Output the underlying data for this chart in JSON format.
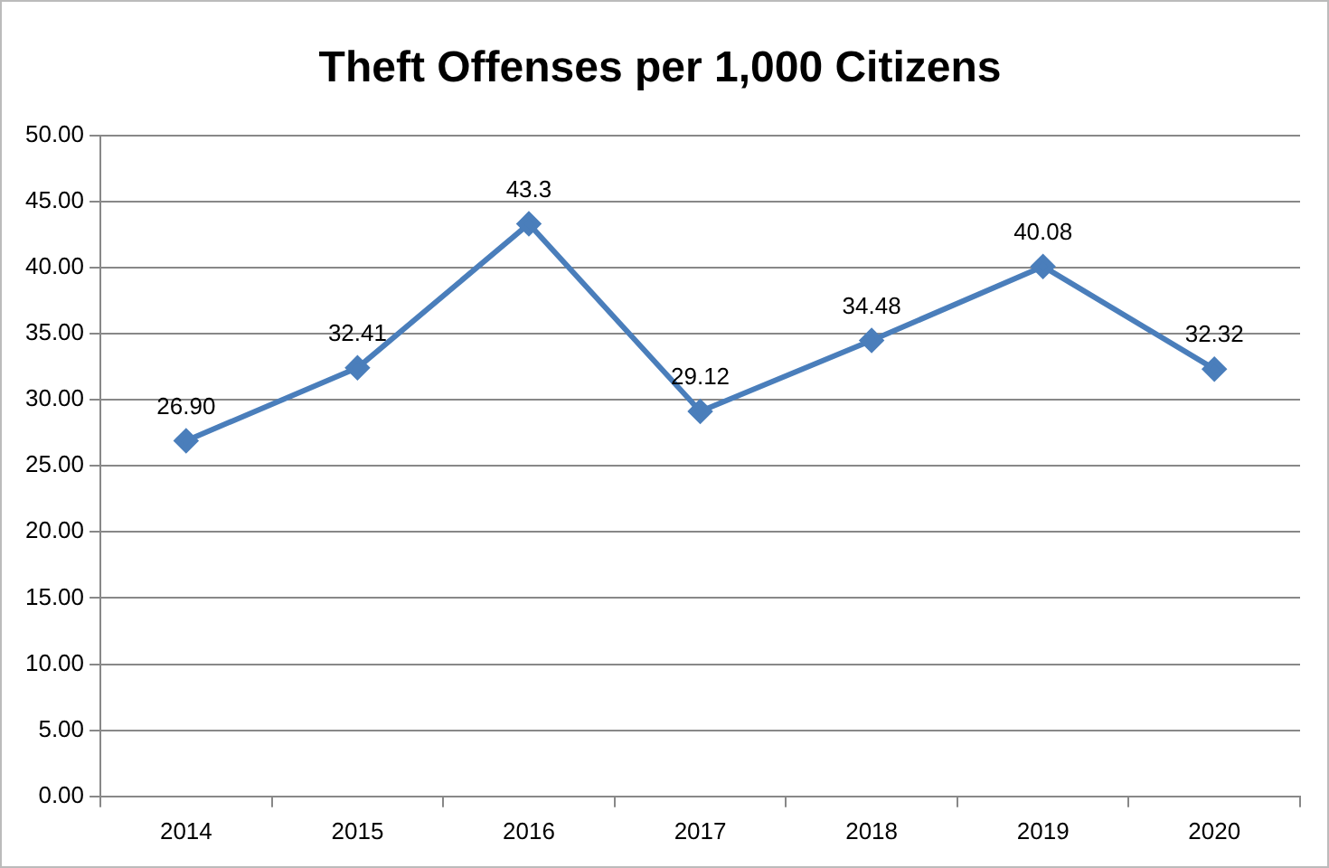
{
  "chart_data": {
    "type": "line",
    "title": "Theft Offenses per 1,000 Citizens",
    "categories": [
      "2014",
      "2015",
      "2016",
      "2017",
      "2018",
      "2019",
      "2020"
    ],
    "series": [
      {
        "color": "#4a7ebb",
        "values": [
          26.9,
          32.41,
          43.3,
          29.12,
          34.48,
          40.08,
          32.32
        ],
        "value_labels": [
          "26.90",
          "32.41",
          "43.3",
          "29.12",
          "34.48",
          "40.08",
          "32.32"
        ]
      }
    ],
    "ylim": [
      0,
      50
    ],
    "yticks": [
      {
        "value": 0,
        "label": "0.00"
      },
      {
        "value": 5,
        "label": "5.00"
      },
      {
        "value": 10,
        "label": "10.00"
      },
      {
        "value": 15,
        "label": "15.00"
      },
      {
        "value": 20,
        "label": "20.00"
      },
      {
        "value": 25,
        "label": "25.00"
      },
      {
        "value": 30,
        "label": "30.00"
      },
      {
        "value": 35,
        "label": "35.00"
      },
      {
        "value": 40,
        "label": "40.00"
      },
      {
        "value": 45,
        "label": "45.00"
      },
      {
        "value": 50,
        "label": "50.00"
      }
    ],
    "grid": "y",
    "legend": false,
    "marker": "diamond",
    "line_style": "solid"
  }
}
